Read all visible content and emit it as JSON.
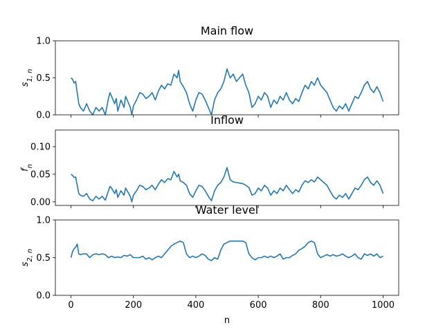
{
  "chart_data": [
    {
      "type": "line",
      "title": "Main flow",
      "xlabel": "",
      "ylabel": "s_{1,n}",
      "ylabel_parts": {
        "base": "s",
        "sub": "1, n"
      },
      "xlim": [
        -50,
        1050
      ],
      "ylim": [
        0.0,
        1.0
      ],
      "xticks": [
        0,
        200,
        400,
        600,
        800,
        1000
      ],
      "xtick_labels_visible": false,
      "yticks": [
        0.0,
        0.5,
        1.0
      ],
      "ytick_labels": [
        "0.0",
        "0.5",
        "1.0"
      ],
      "color": "#1f77b4",
      "grid": false,
      "series": [
        {
          "x": [
            0,
            5,
            10,
            15,
            20,
            25,
            30,
            40,
            50,
            60,
            70,
            80,
            90,
            100,
            110,
            120,
            125,
            130,
            140,
            145,
            150,
            160,
            170,
            175,
            180,
            185,
            190,
            195,
            200,
            210,
            220,
            230,
            240,
            250,
            260,
            270,
            280,
            290,
            300,
            310,
            320,
            330,
            340,
            345,
            350,
            360,
            370,
            380,
            390,
            400,
            410,
            420,
            430,
            440,
            450,
            460,
            470,
            480,
            490,
            500,
            510,
            520,
            530,
            540,
            550,
            560,
            570,
            580,
            590,
            600,
            610,
            620,
            630,
            640,
            650,
            660,
            670,
            680,
            690,
            700,
            710,
            720,
            730,
            740,
            750,
            760,
            770,
            780,
            790,
            800,
            810,
            820,
            830,
            840,
            850,
            860,
            870,
            880,
            890,
            900,
            910,
            920,
            930,
            940,
            950,
            960,
            970,
            980,
            990,
            1000
          ],
          "y": [
            0.5,
            0.48,
            0.43,
            0.45,
            0.3,
            0.15,
            0.1,
            0.05,
            0.15,
            0.05,
            0.0,
            0.1,
            0.05,
            0.1,
            0.0,
            0.22,
            0.3,
            0.25,
            0.15,
            0.22,
            0.05,
            0.2,
            0.1,
            0.25,
            0.2,
            0.15,
            0.1,
            0.0,
            0.12,
            0.2,
            0.3,
            0.28,
            0.22,
            0.25,
            0.3,
            0.2,
            0.32,
            0.4,
            0.35,
            0.42,
            0.4,
            0.55,
            0.5,
            0.6,
            0.45,
            0.38,
            0.3,
            0.15,
            0.05,
            0.2,
            0.3,
            0.28,
            0.2,
            0.1,
            0.0,
            0.2,
            0.3,
            0.35,
            0.45,
            0.62,
            0.5,
            0.55,
            0.45,
            0.5,
            0.55,
            0.4,
            0.3,
            0.1,
            0.15,
            0.25,
            0.2,
            0.3,
            0.25,
            0.1,
            0.2,
            0.15,
            0.25,
            0.2,
            0.3,
            0.2,
            0.15,
            0.22,
            0.18,
            0.3,
            0.4,
            0.35,
            0.45,
            0.4,
            0.5,
            0.4,
            0.35,
            0.3,
            0.2,
            0.1,
            0.05,
            0.12,
            0.08,
            0.15,
            0.05,
            0.15,
            0.25,
            0.22,
            0.3,
            0.4,
            0.45,
            0.35,
            0.3,
            0.38,
            0.3,
            0.18
          ]
        }
      ]
    },
    {
      "type": "line",
      "title": "Inflow",
      "xlabel": "",
      "ylabel": "f_n",
      "ylabel_parts": {
        "base": "f",
        "sub": "n"
      },
      "xlim": [
        -50,
        1050
      ],
      "ylim": [
        -0.0065,
        0.13
      ],
      "xticks": [
        0,
        200,
        400,
        600,
        800,
        1000
      ],
      "xtick_labels_visible": false,
      "yticks": [
        0.0,
        0.05,
        0.1
      ],
      "ytick_labels": [
        "0.00",
        "0.05",
        "0.10"
      ],
      "color": "#1f77b4",
      "grid": false,
      "series": [
        {
          "x": [
            0,
            5,
            10,
            15,
            20,
            25,
            30,
            40,
            50,
            60,
            70,
            80,
            90,
            100,
            110,
            120,
            125,
            130,
            140,
            145,
            150,
            160,
            170,
            175,
            180,
            185,
            190,
            195,
            200,
            210,
            220,
            230,
            240,
            250,
            260,
            270,
            280,
            290,
            300,
            310,
            320,
            330,
            340,
            345,
            350,
            360,
            370,
            380,
            390,
            400,
            410,
            420,
            430,
            440,
            450,
            460,
            470,
            480,
            490,
            500,
            510,
            520,
            530,
            540,
            550,
            560,
            570,
            580,
            590,
            600,
            610,
            620,
            630,
            640,
            650,
            660,
            670,
            680,
            690,
            700,
            710,
            720,
            730,
            740,
            750,
            760,
            770,
            780,
            790,
            800,
            810,
            820,
            830,
            840,
            850,
            860,
            870,
            880,
            890,
            900,
            910,
            920,
            930,
            940,
            950,
            960,
            970,
            980,
            990,
            1000
          ],
          "y": [
            0.05,
            0.048,
            0.044,
            0.045,
            0.03,
            0.015,
            0.012,
            0.01,
            0.015,
            0.005,
            0.002,
            0.01,
            0.005,
            0.01,
            0.003,
            0.02,
            0.028,
            0.025,
            0.015,
            0.022,
            0.008,
            0.02,
            0.012,
            0.025,
            0.02,
            0.015,
            0.01,
            0.0,
            0.012,
            0.02,
            0.03,
            0.028,
            0.022,
            0.025,
            0.03,
            0.022,
            0.032,
            0.04,
            0.035,
            0.042,
            0.04,
            0.055,
            0.045,
            0.05,
            0.038,
            0.035,
            0.03,
            0.015,
            0.008,
            0.02,
            0.03,
            0.028,
            0.02,
            0.01,
            0.002,
            0.02,
            0.03,
            0.035,
            0.045,
            0.062,
            0.04,
            0.036,
            0.035,
            0.034,
            0.033,
            0.03,
            0.026,
            0.012,
            0.015,
            0.025,
            0.02,
            0.03,
            0.025,
            0.012,
            0.02,
            0.015,
            0.025,
            0.02,
            0.03,
            0.022,
            0.015,
            0.022,
            0.018,
            0.03,
            0.038,
            0.035,
            0.04,
            0.036,
            0.045,
            0.04,
            0.035,
            0.03,
            0.02,
            0.01,
            0.005,
            0.012,
            0.008,
            0.015,
            0.005,
            0.015,
            0.025,
            0.022,
            0.03,
            0.04,
            0.045,
            0.035,
            0.03,
            0.038,
            0.03,
            0.015
          ]
        }
      ]
    },
    {
      "type": "line",
      "title": "Water level",
      "xlabel": "n",
      "ylabel": "s_{2,n}",
      "ylabel_parts": {
        "base": "s",
        "sub": "2, n"
      },
      "xlim": [
        -50,
        1050
      ],
      "ylim": [
        0.0,
        1.0
      ],
      "xticks": [
        0,
        200,
        400,
        600,
        800,
        1000
      ],
      "xtick_labels_visible": true,
      "xtick_labels": [
        "0",
        "200",
        "400",
        "600",
        "800",
        "1000"
      ],
      "yticks": [
        0.0,
        0.5,
        1.0
      ],
      "ytick_labels": [
        "0.0",
        "0.5",
        "1.0"
      ],
      "color": "#1f77b4",
      "grid": false,
      "series": [
        {
          "x": [
            0,
            5,
            10,
            15,
            20,
            25,
            30,
            40,
            50,
            60,
            70,
            80,
            90,
            100,
            110,
            120,
            130,
            140,
            150,
            160,
            170,
            180,
            190,
            200,
            210,
            220,
            230,
            240,
            250,
            260,
            270,
            280,
            290,
            300,
            310,
            320,
            330,
            340,
            350,
            360,
            370,
            380,
            390,
            400,
            410,
            420,
            430,
            440,
            450,
            460,
            470,
            480,
            490,
            500,
            510,
            520,
            530,
            540,
            550,
            560,
            570,
            580,
            590,
            600,
            610,
            620,
            630,
            640,
            650,
            660,
            670,
            680,
            690,
            700,
            710,
            720,
            730,
            740,
            750,
            760,
            770,
            780,
            790,
            800,
            810,
            820,
            830,
            840,
            850,
            860,
            870,
            880,
            890,
            900,
            910,
            920,
            930,
            940,
            950,
            960,
            970,
            980,
            990,
            1000
          ],
          "y": [
            0.5,
            0.58,
            0.62,
            0.64,
            0.68,
            0.55,
            0.54,
            0.55,
            0.55,
            0.5,
            0.54,
            0.55,
            0.54,
            0.55,
            0.54,
            0.5,
            0.52,
            0.5,
            0.51,
            0.5,
            0.53,
            0.52,
            0.54,
            0.5,
            0.5,
            0.5,
            0.52,
            0.48,
            0.5,
            0.47,
            0.5,
            0.52,
            0.5,
            0.55,
            0.6,
            0.65,
            0.68,
            0.7,
            0.72,
            0.7,
            0.55,
            0.5,
            0.52,
            0.5,
            0.52,
            0.55,
            0.53,
            0.48,
            0.46,
            0.5,
            0.48,
            0.6,
            0.68,
            0.7,
            0.72,
            0.72,
            0.72,
            0.72,
            0.72,
            0.7,
            0.55,
            0.5,
            0.47,
            0.5,
            0.5,
            0.52,
            0.5,
            0.52,
            0.5,
            0.52,
            0.55,
            0.48,
            0.5,
            0.5,
            0.53,
            0.55,
            0.6,
            0.62,
            0.65,
            0.7,
            0.72,
            0.7,
            0.55,
            0.5,
            0.52,
            0.54,
            0.52,
            0.54,
            0.52,
            0.53,
            0.55,
            0.52,
            0.5,
            0.52,
            0.55,
            0.5,
            0.48,
            0.55,
            0.53,
            0.55,
            0.52,
            0.55,
            0.5,
            0.52
          ]
        }
      ]
    }
  ]
}
